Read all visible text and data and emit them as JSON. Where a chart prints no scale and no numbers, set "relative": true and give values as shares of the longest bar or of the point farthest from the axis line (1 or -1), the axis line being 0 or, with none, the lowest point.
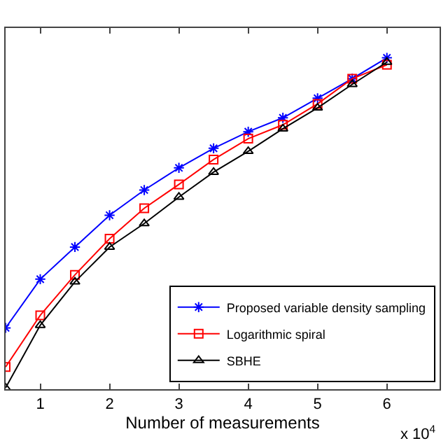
{
  "chart_data": {
    "type": "line",
    "relative": true,
    "xlabel": "Number of measurements",
    "x": [
      0.5,
      1,
      1.5,
      2,
      2.5,
      3,
      3.5,
      4,
      4.5,
      5,
      5.5,
      6
    ],
    "xlim": [
      0.5,
      6.76
    ],
    "xticks": [
      1,
      2,
      3,
      4,
      5,
      6
    ],
    "series": [
      {
        "name": "Proposed variable density sampling",
        "color": "#0000ff",
        "marker": "cross",
        "values": [
          0.185,
          0.332,
          0.429,
          0.525,
          0.601,
          0.668,
          0.727,
          0.777,
          0.819,
          0.878,
          0.937,
          1
        ]
      },
      {
        "name": "Logarithmic spiral",
        "color": "#ff0000",
        "marker": "square",
        "values": [
          0.067,
          0.223,
          0.345,
          0.454,
          0.546,
          0.618,
          0.693,
          0.756,
          0.798,
          0.861,
          0.937,
          0.979
        ]
      },
      {
        "name": "SBHE",
        "color": "#000000",
        "marker": "triangle",
        "values": [
          0.004,
          0.193,
          0.324,
          0.429,
          0.5,
          0.58,
          0.655,
          0.718,
          0.786,
          0.849,
          0.92,
          0.987
        ]
      }
    ],
    "annotations": [
      "x 10$^{4}$"
    ],
    "legend": "bottom right",
    "line_style": "solid"
  }
}
